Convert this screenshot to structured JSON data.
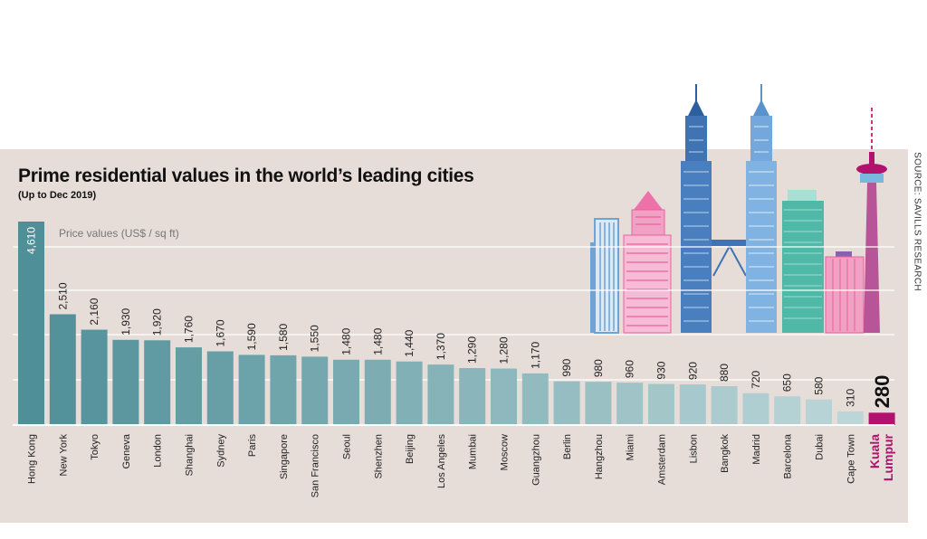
{
  "source": "SOURCE: SAVILLS RESEARCH",
  "chart_data": {
    "type": "bar",
    "title": "Prime residential values in the world’s leading cities",
    "subtitle": "(Up to Dec 2019)",
    "ylabel": "Price values (US$ / sq ft)",
    "ylim": [
      0,
      4610
    ],
    "grid": true,
    "categories": [
      "Hong Kong",
      "New York",
      "Tokyo",
      "Geneva",
      "London",
      "Shanghai",
      "Sydney",
      "Paris",
      "Singapore",
      "San Francisco",
      "Seoul",
      "Shenzhen",
      "Beijing",
      "Los Angeles",
      "Mumbai",
      "Moscow",
      "Guangzhou",
      "Berlin",
      "Hangzhou",
      "Miami",
      "Amsterdam",
      "Lisbon",
      "Bangkok",
      "Madrid",
      "Barcelona",
      "Dubai",
      "Cape Town",
      "Kuala Lumpur"
    ],
    "values": [
      4610,
      2510,
      2160,
      1930,
      1920,
      1760,
      1670,
      1590,
      1580,
      1550,
      1480,
      1480,
      1440,
      1370,
      1290,
      1280,
      1170,
      990,
      980,
      960,
      930,
      920,
      880,
      720,
      650,
      580,
      310,
      280
    ],
    "value_labels": [
      "4,610",
      "2,510",
      "2,160",
      "1,930",
      "1,920",
      "1,760",
      "1,670",
      "1,590",
      "1,580",
      "1,550",
      "1,480",
      "1,480",
      "1,440",
      "1,370",
      "1,290",
      "1,280",
      "1,170",
      "990",
      "980",
      "960",
      "930",
      "920",
      "880",
      "720",
      "650",
      "580",
      "310",
      "280"
    ],
    "highlight": {
      "category": "Kuala Lumpur",
      "color": "#b0126d"
    },
    "colors": {
      "bar_start": "#4f8f98",
      "bar_end": "#bcd6d8",
      "background": "#e6ddd8"
    }
  }
}
